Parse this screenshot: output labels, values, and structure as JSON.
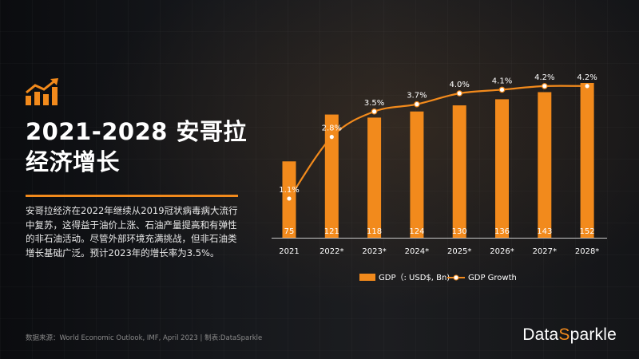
{
  "header": {
    "title_line1": "2021-2028 安哥拉",
    "title_line2": "经济增长",
    "description": "安哥拉经济在2022年继续从2019冠状病毒病大流行中复苏，这得益于油价上涨、石油产量提高和有弹性的非石油活动。尽管外部环境充满挑战，但非石油类增长基础广泛。预计2023年的增长率为3.5%。"
  },
  "footer": {
    "source": "数据来源：World Economic Outlook, IMF, April 2023 | 制表:DataSparkle",
    "brand_prefix": "Data",
    "brand_a": "S",
    "brand_suffix": "parkle"
  },
  "icons": {
    "logo": "chart-growth-icon"
  },
  "colors": {
    "accent": "#f28a1c",
    "text": "#ffffff"
  },
  "chart_data": {
    "type": "bar",
    "categories": [
      "2021",
      "2022*",
      "2023*",
      "2024*",
      "2025*",
      "2026*",
      "2027*",
      "2028*"
    ],
    "series": [
      {
        "name": "GDP（: USD$, Bn)",
        "type": "bar",
        "values": [
          75,
          121,
          118,
          124,
          130,
          136,
          143,
          152
        ]
      },
      {
        "name": "GDP Growth",
        "type": "line",
        "values": [
          1.1,
          2.8,
          3.5,
          3.7,
          4.0,
          4.1,
          4.2,
          4.2
        ],
        "labels": [
          "1.1%",
          "2.8%",
          "3.5%",
          "3.7%",
          "4.0%",
          "4.1%",
          "4.2%",
          "4.2%"
        ]
      }
    ],
    "legend_position": "bottom",
    "grid": false
  }
}
